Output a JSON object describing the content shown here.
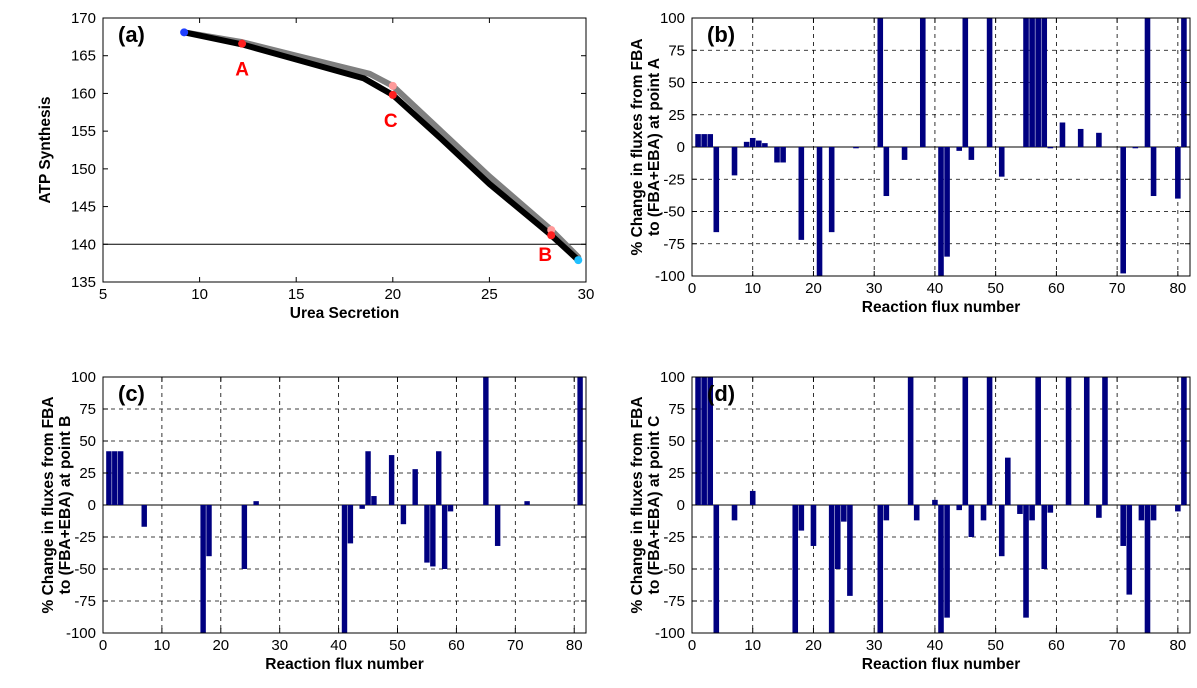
{
  "colors": {
    "bar": "#000080",
    "curve_black": "#000000",
    "curve_grey": "#7f7f7f",
    "marker_blue": "#1f3fff",
    "marker_red": "#ff2020",
    "marker_pink": "#ff9a9a",
    "marker_cyan": "#20c0ff",
    "label_red": "#ff0000"
  },
  "chart_data": [
    {
      "id": "a",
      "type": "line",
      "panel_label": "(a)",
      "xlabel": "Urea Secretion",
      "ylabel": "ATP Synthesis",
      "xlim": [
        5,
        30
      ],
      "ylim": [
        135,
        170
      ],
      "xticks": [
        "5",
        "10",
        "15",
        "20",
        "25",
        "30"
      ],
      "yticks": [
        "135",
        "140",
        "145",
        "150",
        "155",
        "160",
        "165",
        "170"
      ],
      "hline": 140,
      "series": [
        {
          "color": "curve_grey",
          "x": [
            9.2,
            12.2,
            15,
            18.8,
            20.0,
            22.5,
            25,
            28.2,
            29.6
          ],
          "y": [
            168.1,
            166.8,
            165.0,
            162.6,
            161.0,
            155.0,
            149.0,
            141.9,
            138.3
          ]
        },
        {
          "color": "curve_black",
          "x": [
            9.2,
            12.2,
            15,
            18.5,
            20.0,
            22.5,
            25,
            28.2,
            29.6
          ],
          "y": [
            168.1,
            166.5,
            164.5,
            162.0,
            159.8,
            154.0,
            148.0,
            141.2,
            137.9
          ]
        }
      ],
      "points": [
        {
          "x": 9.2,
          "y": 168.1,
          "color": "marker_blue",
          "label": ""
        },
        {
          "x": 12.2,
          "y": 166.6,
          "color": "marker_red",
          "label": "A"
        },
        {
          "x": 20.0,
          "y": 161.0,
          "color": "marker_pink",
          "label": ""
        },
        {
          "x": 20.0,
          "y": 159.8,
          "color": "marker_red",
          "label": "C"
        },
        {
          "x": 28.2,
          "y": 141.9,
          "color": "marker_pink",
          "label": ""
        },
        {
          "x": 28.2,
          "y": 141.2,
          "color": "marker_red",
          "label": "B"
        },
        {
          "x": 29.6,
          "y": 137.9,
          "color": "marker_cyan",
          "label": ""
        }
      ]
    },
    {
      "id": "b",
      "type": "bar",
      "panel_label": "(b)",
      "xlabel": "Reaction flux number",
      "ylabel": "% Change in fluxes from FBA to (FBA+EBA) at point A",
      "ylabel_lines": [
        "% Change in fluxes from FBA",
        "to (FBA+EBA) at point A"
      ],
      "xlim": [
        0,
        82
      ],
      "ylim": [
        -100,
        100
      ],
      "xticks": [
        "0",
        "10",
        "20",
        "30",
        "40",
        "50",
        "60",
        "70",
        "80"
      ],
      "yticks": [
        "-100",
        "-75",
        "-50",
        "-25",
        "0",
        "25",
        "50",
        "75",
        "100"
      ],
      "x": [
        1,
        2,
        3,
        4,
        7,
        9,
        10,
        11,
        12,
        14,
        15,
        18,
        21,
        23,
        27,
        31,
        32,
        35,
        38,
        41,
        42,
        44,
        45,
        46,
        49,
        51,
        55,
        56,
        57,
        58,
        59,
        61,
        64,
        67,
        71,
        73,
        75,
        76,
        80,
        81
      ],
      "values": [
        10,
        10,
        10,
        -66,
        -22,
        4,
        7,
        5,
        3,
        -12,
        -12,
        -72,
        -100,
        -66,
        -1,
        100,
        -38,
        -10,
        100,
        -100,
        -85,
        -3,
        100,
        -10,
        100,
        -23,
        100,
        100,
        100,
        100,
        -1,
        19,
        14,
        11,
        -98,
        -1,
        100,
        -38,
        -40,
        100
      ]
    },
    {
      "id": "c",
      "type": "bar",
      "panel_label": "(c)",
      "xlabel": "Reaction flux number",
      "ylabel": "% Change in fluxes from FBA to (FBA+EBA) at point B",
      "ylabel_lines": [
        "% Change in fluxes from FBA",
        "to (FBA+EBA) at point B"
      ],
      "xlim": [
        0,
        82
      ],
      "ylim": [
        -100,
        100
      ],
      "xticks": [
        "0",
        "10",
        "20",
        "30",
        "40",
        "50",
        "60",
        "70",
        "80"
      ],
      "yticks": [
        "-100",
        "-75",
        "-50",
        "-25",
        "0",
        "25",
        "50",
        "75",
        "100"
      ],
      "x": [
        1,
        2,
        3,
        7,
        17,
        18,
        24,
        26,
        41,
        42,
        44,
        45,
        46,
        49,
        51,
        53,
        55,
        56,
        57,
        58,
        59,
        65,
        67,
        72,
        81
      ],
      "values": [
        42,
        42,
        42,
        -17,
        -100,
        -40,
        -50,
        3,
        -100,
        -30,
        -3,
        42,
        7,
        39,
        -15,
        28,
        -45,
        -48,
        42,
        -50,
        -5,
        100,
        -32,
        3,
        100
      ]
    },
    {
      "id": "d",
      "type": "bar",
      "panel_label": "(d)",
      "xlabel": "Reaction flux number",
      "ylabel": "% Change in fluxes from FBA to (FBA+EBA) at point C",
      "ylabel_lines": [
        "% Change in fluxes from FBA",
        "to (FBA+EBA) at point C"
      ],
      "xlim": [
        0,
        82
      ],
      "ylim": [
        -100,
        100
      ],
      "xticks": [
        "0",
        "10",
        "20",
        "30",
        "40",
        "50",
        "60",
        "70",
        "80"
      ],
      "yticks": [
        "-100",
        "-75",
        "-50",
        "-25",
        "0",
        "25",
        "50",
        "75",
        "100"
      ],
      "x": [
        1,
        2,
        3,
        4,
        7,
        10,
        17,
        18,
        20,
        23,
        24,
        25,
        26,
        31,
        32,
        36,
        37,
        40,
        41,
        42,
        44,
        45,
        46,
        48,
        49,
        51,
        52,
        54,
        55,
        56,
        57,
        58,
        59,
        62,
        65,
        67,
        68,
        71,
        72,
        74,
        75,
        76,
        80,
        81
      ],
      "values": [
        100,
        100,
        100,
        -100,
        -12,
        11,
        -100,
        -20,
        -32,
        -100,
        -50,
        -13,
        -71,
        -100,
        -12,
        100,
        -12,
        4,
        -100,
        -88,
        -4,
        100,
        -25,
        -12,
        100,
        -40,
        37,
        -7,
        -88,
        -12,
        100,
        -50,
        -6,
        100,
        100,
        -10,
        100,
        -32,
        -70,
        -12,
        -100,
        -12,
        -5,
        100
      ]
    }
  ]
}
